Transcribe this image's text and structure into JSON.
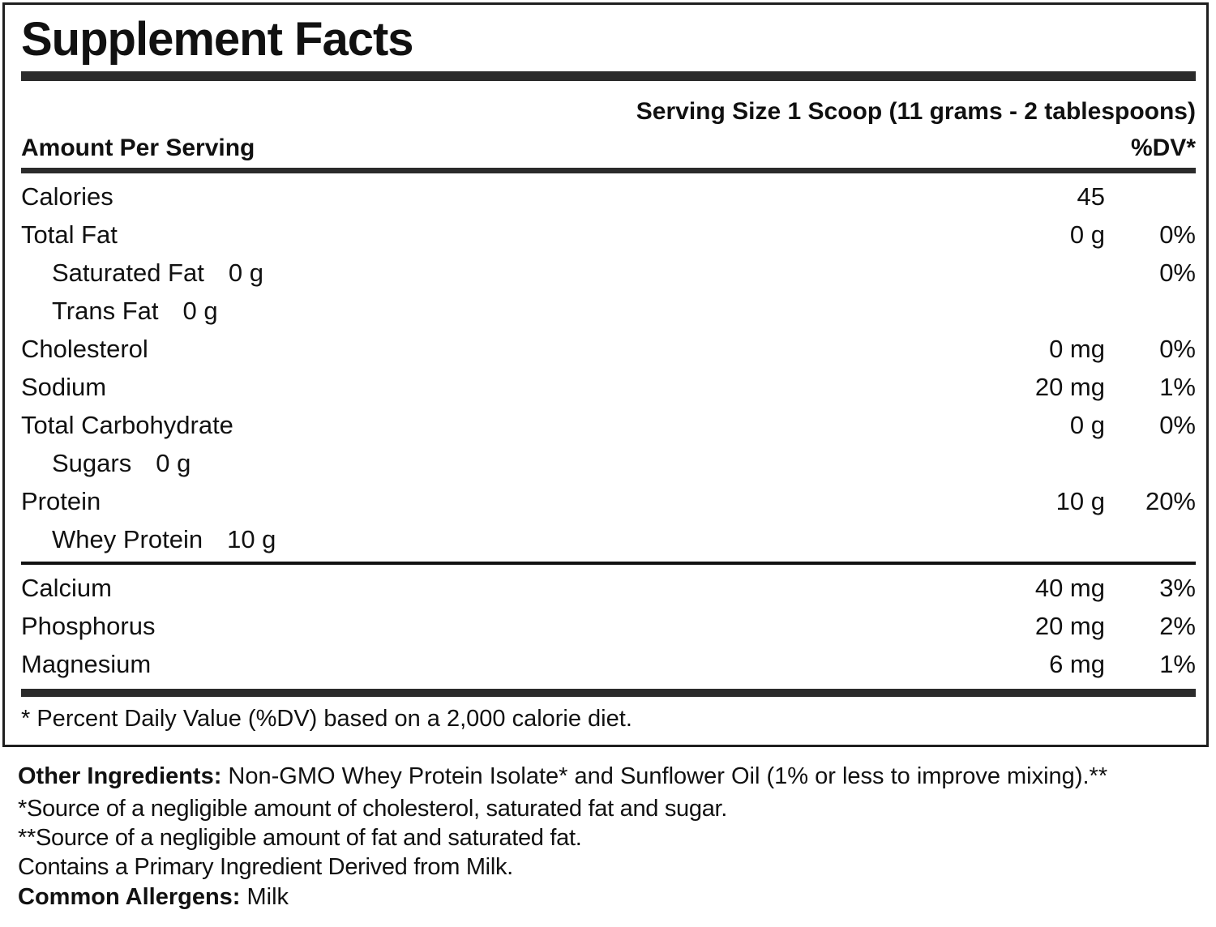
{
  "panel": {
    "title": "Supplement Facts",
    "serving_size": "Serving Size 1 Scoop (11 grams - 2 tablespoons)",
    "columns": {
      "amount_header": "Amount Per Serving",
      "dv_header": "%DV*"
    },
    "rows": [
      {
        "name": "Calories",
        "inline": "",
        "amount": "45",
        "dv": "",
        "indent": false
      },
      {
        "name": "Total Fat",
        "inline": "",
        "amount": "0 g",
        "dv": "0%",
        "indent": false
      },
      {
        "name": "Saturated Fat",
        "inline": "0 g",
        "amount": "",
        "dv": "0%",
        "indent": true
      },
      {
        "name": "Trans Fat",
        "inline": "0 g",
        "amount": "",
        "dv": "",
        "indent": true
      },
      {
        "name": "Cholesterol",
        "inline": "",
        "amount": "0 mg",
        "dv": "0%",
        "indent": false
      },
      {
        "name": "Sodium",
        "inline": "",
        "amount": "20 mg",
        "dv": "1%",
        "indent": false
      },
      {
        "name": "Total Carbohydrate",
        "inline": "",
        "amount": "0 g",
        "dv": "0%",
        "indent": false
      },
      {
        "name": "Sugars",
        "inline": "0 g",
        "amount": "",
        "dv": "",
        "indent": true
      },
      {
        "name": "Protein",
        "inline": "",
        "amount": "10 g",
        "dv": "20%",
        "indent": false
      },
      {
        "name": "Whey Protein",
        "inline": "10 g",
        "amount": "",
        "dv": "",
        "indent": true
      }
    ],
    "mineral_rows": [
      {
        "name": "Calcium",
        "inline": "",
        "amount": "40 mg",
        "dv": "3%",
        "indent": false
      },
      {
        "name": "Phosphorus",
        "inline": "",
        "amount": "20 mg",
        "dv": "2%",
        "indent": false
      },
      {
        "name": "Magnesium",
        "inline": "",
        "amount": "6 mg",
        "dv": "1%",
        "indent": false
      }
    ],
    "footnote": "* Percent Daily Value (%DV) based on a 2,000 calorie diet."
  },
  "notes": {
    "other_ingredients_label": "Other Ingredients:",
    "other_ingredients_text": " Non-GMO Whey Protein Isolate* and Sunflower Oil (1% or less to improve mixing).**",
    "source_note_1": "*Source of a negligible amount of cholesterol, saturated fat and sugar.",
    "source_note_2": "**Source of a negligible amount of fat and saturated fat.",
    "milk_note": "Contains a Primary Ingredient Derived from Milk.",
    "allergens_label": "Common Allergens:",
    "allergens_text": " Milk"
  },
  "colors": {
    "text": "#111111",
    "bar": "#2b2b2b",
    "border": "#1f1f1f",
    "background": "#ffffff"
  }
}
